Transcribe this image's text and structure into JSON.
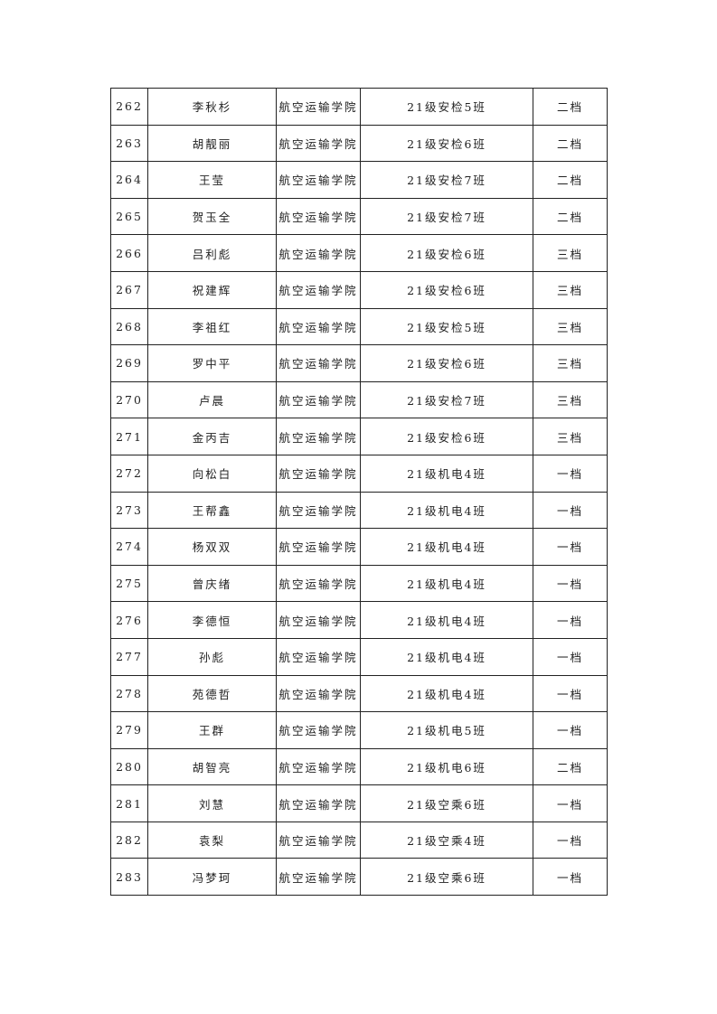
{
  "table": {
    "rows": [
      [
        "262",
        "李秋杉",
        "航空运输学院",
        "21级安检5班",
        "二档"
      ],
      [
        "263",
        "胡靓丽",
        "航空运输学院",
        "21级安检6班",
        "二档"
      ],
      [
        "264",
        "王莹",
        "航空运输学院",
        "21级安检7班",
        "二档"
      ],
      [
        "265",
        "贺玉全",
        "航空运输学院",
        "21级安检7班",
        "二档"
      ],
      [
        "266",
        "吕利彪",
        "航空运输学院",
        "21级安检6班",
        "三档"
      ],
      [
        "267",
        "祝建辉",
        "航空运输学院",
        "21级安检6班",
        "三档"
      ],
      [
        "268",
        "李祖红",
        "航空运输学院",
        "21级安检5班",
        "三档"
      ],
      [
        "269",
        "罗中平",
        "航空运输学院",
        "21级安检6班",
        "三档"
      ],
      [
        "270",
        "卢晨",
        "航空运输学院",
        "21级安检7班",
        "三档"
      ],
      [
        "271",
        "金丙吉",
        "航空运输学院",
        "21级安检6班",
        "三档"
      ],
      [
        "272",
        "向松白",
        "航空运输学院",
        "21级机电4班",
        "一档"
      ],
      [
        "273",
        "王帮鑫",
        "航空运输学院",
        "21级机电4班",
        "一档"
      ],
      [
        "274",
        "杨双双",
        "航空运输学院",
        "21级机电4班",
        "一档"
      ],
      [
        "275",
        "曾庆绪",
        "航空运输学院",
        "21级机电4班",
        "一档"
      ],
      [
        "276",
        "李德恒",
        "航空运输学院",
        "21级机电4班",
        "一档"
      ],
      [
        "277",
        "孙彪",
        "航空运输学院",
        "21级机电4班",
        "一档"
      ],
      [
        "278",
        "苑德哲",
        "航空运输学院",
        "21级机电4班",
        "一档"
      ],
      [
        "279",
        "王群",
        "航空运输学院",
        "21级机电5班",
        "一档"
      ],
      [
        "280",
        "胡智亮",
        "航空运输学院",
        "21级机电6班",
        "二档"
      ],
      [
        "281",
        "刘慧",
        "航空运输学院",
        "21级空乘6班",
        "一档"
      ],
      [
        "282",
        "袁梨",
        "航空运输学院",
        "21级空乘4班",
        "一档"
      ],
      [
        "283",
        "冯梦珂",
        "航空运输学院",
        "21级空乘6班",
        "一档"
      ]
    ]
  }
}
